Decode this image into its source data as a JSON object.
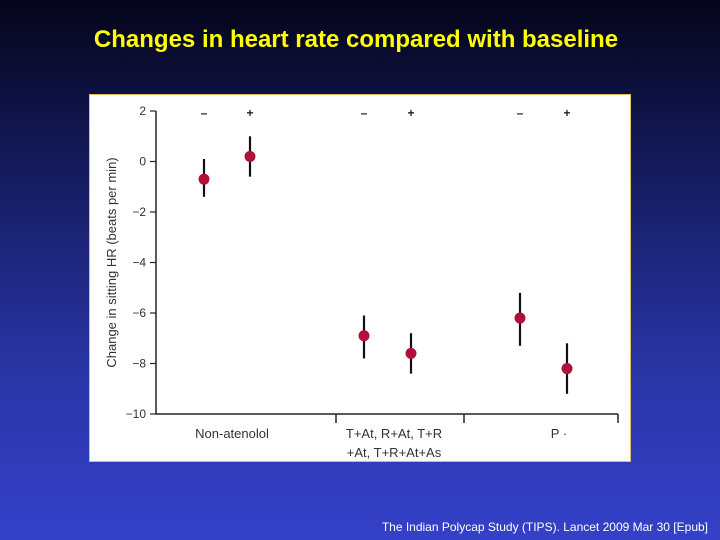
{
  "slide": {
    "title": "Changes in heart rate compared with baseline",
    "citation": "The Indian Polycap Study (TIPS). Lancet 2009 Mar 30 [Epub]"
  },
  "colors": {
    "background_top": "#05051a",
    "background_bottom": "#3440c8",
    "title": "#ffff00",
    "marker": "#b0103a",
    "error_bar": "#111111"
  },
  "chart_data": {
    "type": "scatter",
    "ylabel": "Change in sitting HR (beats per min)",
    "ylim": [
      -10,
      2
    ],
    "yticks": [
      2,
      0,
      -2,
      -4,
      -6,
      -8,
      -10
    ],
    "ytick_labels": [
      "2",
      "0",
      "−2",
      "−4",
      "−6",
      "−8",
      "−10"
    ],
    "groups": [
      {
        "label_lines": [
          "Non-atenolol"
        ],
        "points": [
          {
            "marker": "–",
            "mean": -0.7,
            "low": -1.4,
            "high": 0.1
          },
          {
            "marker": "+",
            "mean": 0.2,
            "low": -0.6,
            "high": 1.0
          }
        ]
      },
      {
        "label_lines": [
          "T+At, R+At, T+R",
          "+At, T+R+At+As"
        ],
        "points": [
          {
            "marker": "–",
            "mean": -6.9,
            "low": -7.8,
            "high": -6.1
          },
          {
            "marker": "+",
            "mean": -7.6,
            "low": -8.4,
            "high": -6.8
          }
        ]
      },
      {
        "label_lines": [
          "P ·"
        ],
        "points": [
          {
            "marker": "–",
            "mean": -6.2,
            "low": -7.3,
            "high": -5.2
          },
          {
            "marker": "+",
            "mean": -8.2,
            "low": -9.2,
            "high": -7.2
          }
        ]
      }
    ],
    "grid": false,
    "legend": "none"
  }
}
